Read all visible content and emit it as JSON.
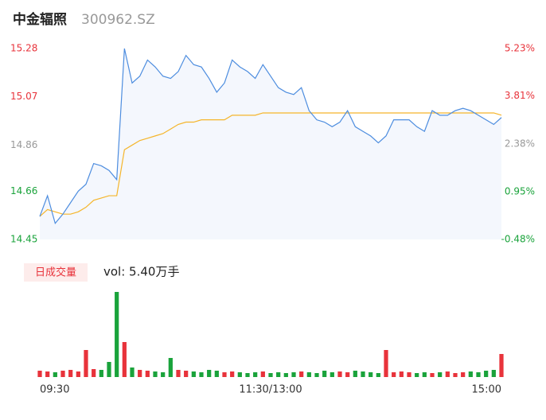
{
  "chart_data": {
    "type": "line",
    "title": "中金辐照",
    "subtitle": "300962.SZ",
    "x": [
      0,
      4,
      8,
      12,
      16,
      20,
      24,
      28,
      32,
      36,
      40,
      44,
      48,
      52,
      56,
      60,
      64,
      68,
      72,
      76,
      80,
      84,
      88,
      92,
      96,
      100,
      104,
      108,
      112,
      116,
      120,
      124,
      128,
      132,
      136,
      140,
      144,
      148,
      152,
      156,
      160,
      164,
      168,
      172,
      176,
      180,
      184,
      188,
      192,
      196,
      200,
      204,
      208,
      212,
      216,
      220,
      224,
      228,
      232,
      236,
      240
    ],
    "xlim": [
      0,
      240
    ],
    "xticks": [
      {
        "value": 0,
        "label": "09:30"
      },
      {
        "value": 120,
        "label": "11:30/13:00"
      },
      {
        "value": 240,
        "label": "15:00"
      }
    ],
    "ylim": [
      14.45,
      15.28
    ],
    "yticks": [
      15.28,
      15.07,
      14.86,
      14.66,
      14.45
    ],
    "ytick_colors": [
      "#e8333b",
      "#e8333b",
      "#999999",
      "#1aa33b",
      "#1aa33b"
    ],
    "y2lim": [
      -0.48,
      5.23
    ],
    "y2ticks": [
      {
        "value": 5.23,
        "label": "5.23%"
      },
      {
        "value": 3.81,
        "label": "3.81%"
      },
      {
        "value": 2.38,
        "label": "2.38%"
      },
      {
        "value": 0.95,
        "label": "0.95%"
      },
      {
        "value": -0.48,
        "label": "-0.48%"
      }
    ],
    "y2tick_colors": [
      "#e8333b",
      "#e8333b",
      "#999999",
      "#1aa33b",
      "#1aa33b"
    ],
    "price": {
      "color": "#4d8ddf",
      "fill": "#f4f7fd",
      "values": [
        14.55,
        14.64,
        14.52,
        14.56,
        14.61,
        14.66,
        14.69,
        14.78,
        14.77,
        14.75,
        14.71,
        15.28,
        15.13,
        15.16,
        15.23,
        15.2,
        15.16,
        15.15,
        15.18,
        15.25,
        15.21,
        15.2,
        15.15,
        15.09,
        15.13,
        15.23,
        15.2,
        15.18,
        15.15,
        15.21,
        15.16,
        15.11,
        15.09,
        15.08,
        15.11,
        15.01,
        14.97,
        14.96,
        14.94,
        14.96,
        15.01,
        14.94,
        14.92,
        14.9,
        14.87,
        14.9,
        14.97,
        14.97,
        14.97,
        14.94,
        14.92,
        15.01,
        14.99,
        14.99,
        15.01,
        15.02,
        15.01,
        14.99,
        14.97,
        14.95,
        14.98
      ]
    },
    "average": {
      "color": "#f5b52a",
      "values": [
        14.55,
        14.58,
        14.57,
        14.56,
        14.56,
        14.57,
        14.59,
        14.62,
        14.63,
        14.64,
        14.64,
        14.84,
        14.86,
        14.88,
        14.89,
        14.9,
        14.91,
        14.93,
        14.95,
        14.96,
        14.96,
        14.97,
        14.97,
        14.97,
        14.97,
        14.99,
        14.99,
        14.99,
        14.99,
        15.0,
        15.0,
        15.0,
        15.0,
        15.0,
        15.0,
        15.0,
        15.0,
        15.0,
        15.0,
        15.0,
        15.0,
        15.0,
        15.0,
        15.0,
        15.0,
        15.0,
        15.0,
        15.0,
        15.0,
        15.0,
        15.0,
        15.0,
        15.0,
        15.0,
        15.0,
        15.0,
        15.0,
        15.0,
        15.0,
        15.0,
        14.99
      ]
    },
    "volume": {
      "label": "日成交量",
      "summary": "vol: 5.40万手",
      "up_color": "#e8333b",
      "down_color": "#1aa33b",
      "values": [
        800,
        700,
        600,
        800,
        900,
        700,
        3400,
        1000,
        900,
        1900,
        10700,
        4400,
        1200,
        900,
        800,
        700,
        600,
        2400,
        900,
        800,
        700,
        600,
        900,
        800,
        600,
        700,
        600,
        500,
        600,
        700,
        500,
        600,
        500,
        600,
        700,
        600,
        500,
        800,
        600,
        700,
        600,
        800,
        700,
        600,
        500,
        3400,
        600,
        700,
        600,
        500,
        600,
        500,
        600,
        700,
        500,
        600,
        700,
        600,
        800,
        900,
        2900
      ]
    }
  }
}
